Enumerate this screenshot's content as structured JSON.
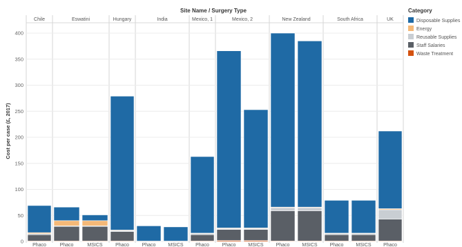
{
  "chart_data": {
    "type": "bar",
    "stacked": true,
    "title": "Site Name / Surgery Type",
    "ylabel": "Cost per case (£, 2017)",
    "ylim": [
      0,
      420
    ],
    "yticks": [
      0,
      50,
      100,
      150,
      200,
      250,
      300,
      350,
      400
    ],
    "grid": true,
    "legend_position": "right",
    "legend_title": "Category",
    "series_order": [
      "Waste Treatment",
      "Staff Salaries",
      "Reusable Supplies",
      "Energy",
      "Disposable Supplies"
    ],
    "colors": {
      "Disposable Supplies": "#1f6aa5",
      "Energy": "#f5b978",
      "Reusable Supplies": "#c9ced3",
      "Staff Salaries": "#5a5f66",
      "Waste Treatment": "#d4520f"
    },
    "legend": [
      {
        "name": "Disposable Supplies",
        "color": "#1f6aa5"
      },
      {
        "name": "Energy",
        "color": "#f5b978"
      },
      {
        "name": "Reusable Supplies",
        "color": "#c9ced3"
      },
      {
        "name": "Staff Salaries",
        "color": "#5a5f66"
      },
      {
        "name": "Waste Treatment",
        "color": "#d4520f"
      }
    ],
    "sites": [
      {
        "name": "Chile",
        "bars": [
          {
            "label": "Phaco",
            "values": {
              "Waste Treatment": 1,
              "Staff Salaries": 12,
              "Reusable Supplies": 2,
              "Energy": 2,
              "Disposable Supplies": 52
            }
          }
        ]
      },
      {
        "name": "Eswatini",
        "bars": [
          {
            "label": "Phaco",
            "values": {
              "Waste Treatment": 1,
              "Staff Salaries": 28,
              "Reusable Supplies": 1,
              "Energy": 10,
              "Disposable Supplies": 26
            }
          },
          {
            "label": "MSICS",
            "values": {
              "Waste Treatment": 1,
              "Staff Salaries": 28,
              "Reusable Supplies": 1,
              "Energy": 10,
              "Disposable Supplies": 11
            }
          }
        ]
      },
      {
        "name": "Hungary",
        "bars": [
          {
            "label": "Phaco",
            "values": {
              "Waste Treatment": 1,
              "Staff Salaries": 18,
              "Reusable Supplies": 2,
              "Energy": 1,
              "Disposable Supplies": 257
            }
          }
        ]
      },
      {
        "name": "India",
        "bars": [
          {
            "label": "Phaco",
            "values": {
              "Waste Treatment": 0,
              "Staff Salaries": 1,
              "Reusable Supplies": 0,
              "Energy": 0,
              "Disposable Supplies": 29
            }
          },
          {
            "label": "MSICS",
            "values": {
              "Waste Treatment": 0,
              "Staff Salaries": 1,
              "Reusable Supplies": 0,
              "Energy": 0,
              "Disposable Supplies": 27
            }
          }
        ]
      },
      {
        "name": "Mexico, 1",
        "bars": [
          {
            "label": "Phaco",
            "values": {
              "Waste Treatment": 1,
              "Staff Salaries": 12,
              "Reusable Supplies": 2,
              "Energy": 1,
              "Disposable Supplies": 147
            }
          }
        ]
      },
      {
        "name": "Mexico, 2",
        "bars": [
          {
            "label": "Phaco",
            "values": {
              "Waste Treatment": 2,
              "Staff Salaries": 21,
              "Reusable Supplies": 2,
              "Energy": 1,
              "Disposable Supplies": 340
            }
          },
          {
            "label": "MSICS",
            "values": {
              "Waste Treatment": 2,
              "Staff Salaries": 21,
              "Reusable Supplies": 2,
              "Energy": 1,
              "Disposable Supplies": 227
            }
          }
        ]
      },
      {
        "name": "New Zealand",
        "bars": [
          {
            "label": "Phaco",
            "values": {
              "Waste Treatment": 1,
              "Staff Salaries": 58,
              "Reusable Supplies": 6,
              "Energy": 1,
              "Disposable Supplies": 334
            }
          },
          {
            "label": "MSICS",
            "values": {
              "Waste Treatment": 1,
              "Staff Salaries": 58,
              "Reusable Supplies": 6,
              "Energy": 1,
              "Disposable Supplies": 319
            }
          }
        ]
      },
      {
        "name": "South Africa",
        "bars": [
          {
            "label": "Phaco",
            "values": {
              "Waste Treatment": 1,
              "Staff Salaries": 12,
              "Reusable Supplies": 2,
              "Energy": 1,
              "Disposable Supplies": 63
            }
          },
          {
            "label": "MSICS",
            "values": {
              "Waste Treatment": 1,
              "Staff Salaries": 12,
              "Reusable Supplies": 2,
              "Energy": 1,
              "Disposable Supplies": 63
            }
          }
        ]
      },
      {
        "name": "UK",
        "bars": [
          {
            "label": "Phaco",
            "values": {
              "Waste Treatment": 1,
              "Staff Salaries": 42,
              "Reusable Supplies": 18,
              "Energy": 2,
              "Disposable Supplies": 149
            }
          }
        ]
      }
    ]
  }
}
